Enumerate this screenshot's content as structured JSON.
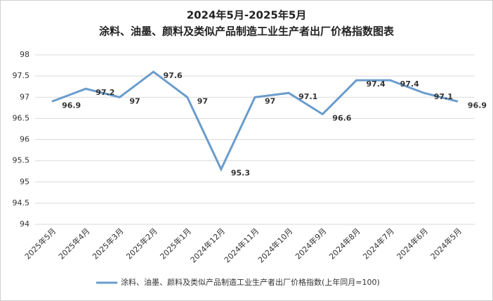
{
  "chart_data": {
    "type": "line",
    "title": "2024年5月-2025年5月",
    "subtitle": "涂料、油墨、颜料及类似产品制造工业生产者出厂价格指数图表",
    "categories": [
      "2025年5月",
      "2025年4月",
      "2025年3月",
      "2025年2月",
      "2025年1月",
      "2024年12月",
      "2024年11月",
      "2024年10月",
      "2024年9月",
      "2024年8月",
      "2024年7月",
      "2024年6月",
      "2024年5月"
    ],
    "series": [
      {
        "name": "涂料、油墨、颜料及类似产品制造工业生产者出厂价格指数(上年同月=100)",
        "color": "#6a9ccc",
        "values": [
          96.9,
          97.2,
          97,
          97.6,
          97,
          95.3,
          97,
          97.1,
          96.6,
          97.4,
          97.4,
          97.1,
          96.9
        ]
      }
    ],
    "ylim": [
      94,
      98
    ],
    "yticks": [
      94,
      94.5,
      95,
      95.5,
      96,
      96.5,
      97,
      97.5,
      98
    ],
    "grid": true,
    "legend": "bottom"
  }
}
